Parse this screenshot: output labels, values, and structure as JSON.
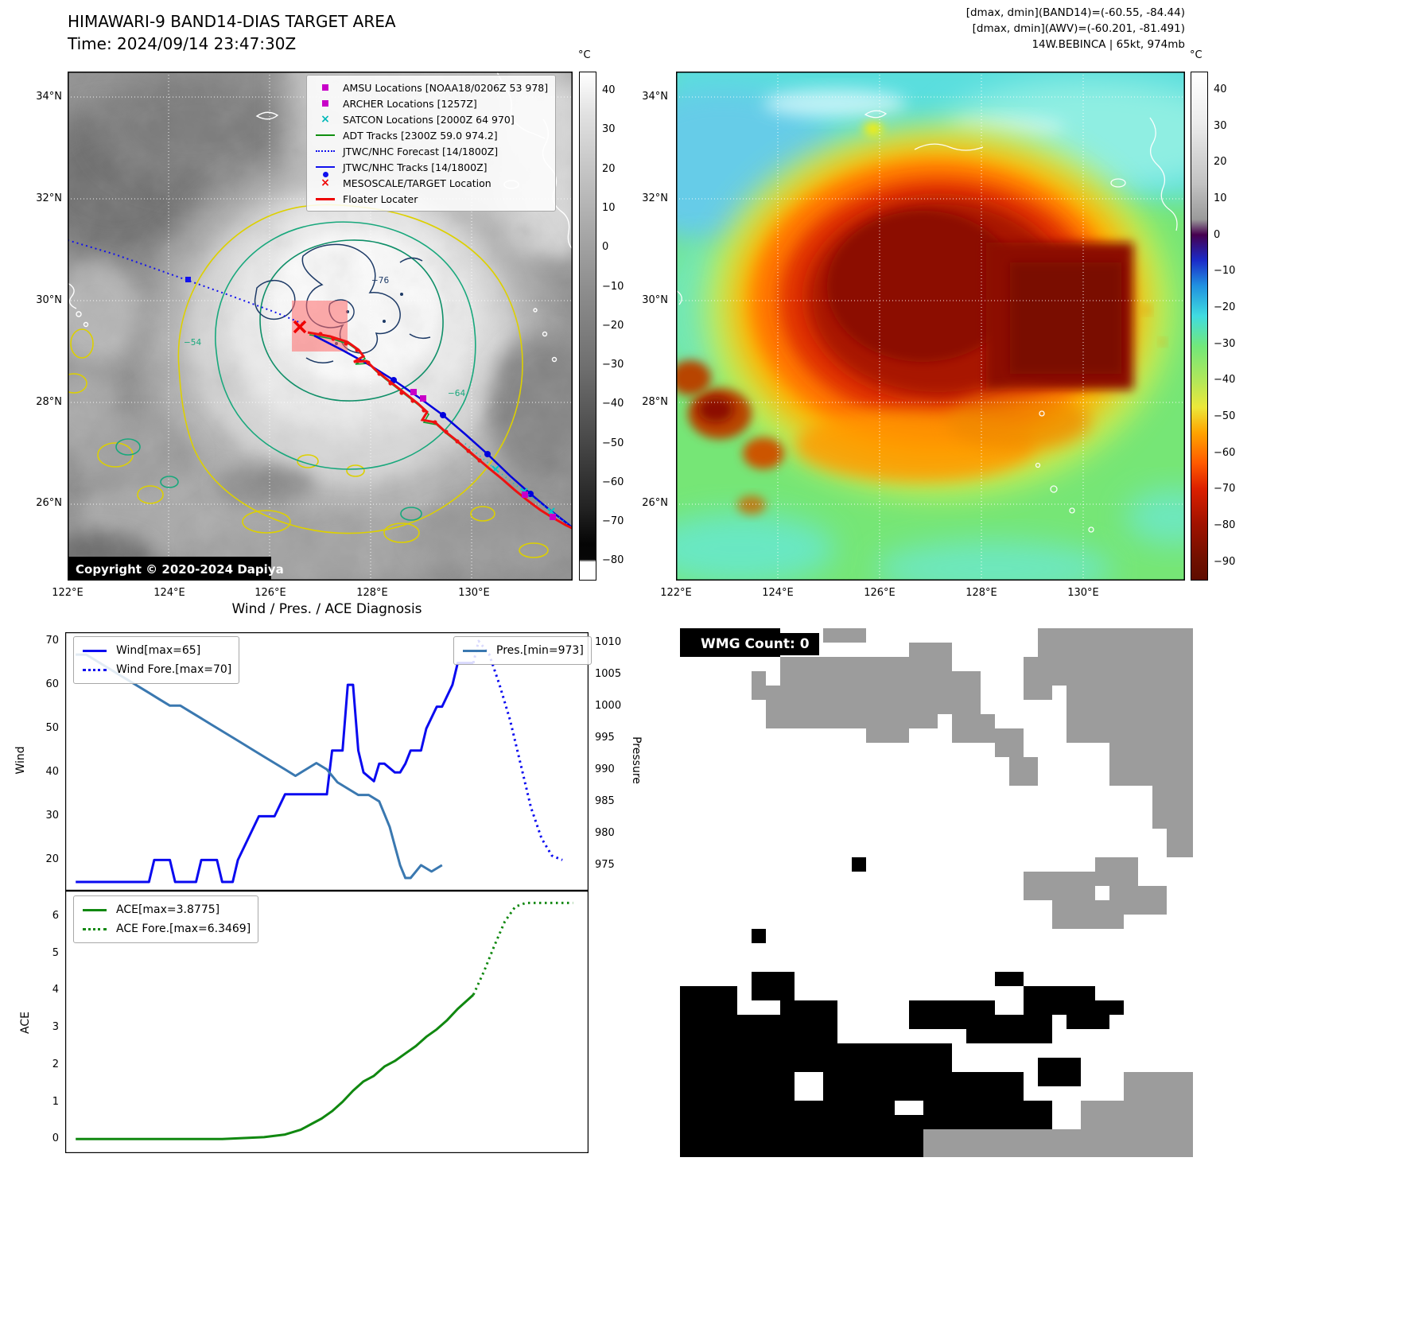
{
  "left_map": {
    "title": "HIMAWARI-9 BAND14-DIAS TARGET AREA",
    "subtitle": "Time: 2024/09/14 23:47:30Z",
    "copyright": "Copyright © 2020-2024 Dapiya",
    "colorbar_unit": "°C",
    "colorbar_ticks": [
      "40",
      "30",
      "20",
      "10",
      "0",
      "−10",
      "−20",
      "−30",
      "−40",
      "−50",
      "−60",
      "−70",
      "−80"
    ],
    "lat_ticks": [
      "34°N",
      "32°N",
      "30°N",
      "28°N",
      "26°N"
    ],
    "lon_ticks": [
      "122°E",
      "124°E",
      "126°E",
      "128°E",
      "130°E"
    ],
    "contour_labels": [
      "−54",
      "−64",
      "−76"
    ],
    "legend": [
      "AMSU Locations [NOAA18/0206Z 53 978]",
      "ARCHER Locations [1257Z]",
      "SATCON Locations [2000Z 64 970]",
      "ADT Tracks [2300Z 59.0 974.2]",
      "JTWC/NHC Forecast [14/1800Z]",
      "JTWC/NHC Tracks [14/1800Z]",
      "MESOSCALE/TARGET Location",
      "Floater Locater"
    ]
  },
  "right_map": {
    "info_line1": "[dmax, dmin](BAND14)=(-60.55, -84.44)",
    "info_line2": "[dmax, dmin](AWV)=(-60.201, -81.491)",
    "info_line3": "14W.BEBINCA | 65kt, 974mb",
    "colorbar_unit": "°C",
    "colorbar_ticks": [
      "40",
      "30",
      "20",
      "10",
      "0",
      "−10",
      "−20",
      "−30",
      "−40",
      "−50",
      "−60",
      "−70",
      "−80",
      "−90"
    ],
    "lat_ticks": [
      "34°N",
      "32°N",
      "30°N",
      "28°N",
      "26°N"
    ],
    "lon_ticks": [
      "122°E",
      "124°E",
      "126°E",
      "128°E",
      "130°E"
    ]
  },
  "wmg": {
    "label": "WMG Count: 0"
  },
  "chart_data": [
    {
      "type": "line",
      "title": "Wind / Pres. / ACE Diagnosis",
      "xlim": [
        0,
        100
      ],
      "ylabel_left": "Wind",
      "ylabel_right": "Pressure",
      "ylim_left": [
        13,
        72
      ],
      "ylim_right": [
        971,
        1011.5
      ],
      "yticks_left": [
        20,
        30,
        40,
        50,
        60,
        70
      ],
      "yticks_right": [
        975,
        980,
        985,
        990,
        995,
        1000,
        1005,
        1010
      ],
      "legend_position": "top-left and top-right",
      "grid": false,
      "series": [
        {
          "name": "Wind[max=65]",
          "axis": "left",
          "style": "solid",
          "color": "#0a0af0",
          "width": 3,
          "x": [
            2,
            16,
            17,
            20,
            21,
            25,
            26,
            29,
            30,
            32,
            33,
            35,
            37,
            40,
            42,
            50,
            51,
            53,
            54,
            55,
            56,
            57,
            59,
            60,
            61,
            63,
            64,
            65,
            66,
            68,
            69,
            71,
            72,
            74,
            75,
            78
          ],
          "y": [
            15,
            15,
            20,
            20,
            15,
            15,
            20,
            20,
            15,
            15,
            20,
            25,
            30,
            30,
            35,
            35,
            45,
            45,
            60,
            60,
            45,
            40,
            38,
            42,
            42,
            40,
            40,
            42,
            45,
            45,
            50,
            55,
            55,
            60,
            65,
            65
          ]
        },
        {
          "name": "Wind Fore.[max=70]",
          "axis": "left",
          "style": "dotted",
          "color": "#0a0af0",
          "width": 3,
          "x": [
            78,
            79,
            81,
            83,
            85,
            87,
            89,
            91,
            93,
            95
          ],
          "y": [
            65,
            70,
            67,
            60,
            52,
            42,
            32,
            25,
            21,
            20
          ]
        },
        {
          "name": "Pres.[min=973]",
          "axis": "right",
          "style": "solid",
          "color": "#3a78b0",
          "width": 3,
          "x": [
            2,
            4,
            6,
            8,
            10,
            12,
            14,
            16,
            18,
            20,
            22,
            24,
            26,
            28,
            30,
            32,
            34,
            36,
            38,
            40,
            42,
            44,
            46,
            48,
            50,
            52,
            54,
            56,
            58,
            60,
            61,
            62,
            63,
            64,
            65,
            66,
            67,
            68,
            70,
            72
          ],
          "y": [
            1008,
            1008,
            1007,
            1006,
            1005,
            1004,
            1003,
            1002,
            1001,
            1000,
            1000,
            999,
            998,
            997,
            996,
            995,
            994,
            993,
            992,
            991,
            990,
            989,
            990,
            991,
            990,
            988,
            987,
            986,
            986,
            985,
            983,
            981,
            978,
            975,
            973,
            973,
            974,
            975,
            974,
            975
          ]
        }
      ]
    },
    {
      "type": "line",
      "title": "ACE",
      "xlim": [
        0,
        100
      ],
      "ylabel_left": "ACE",
      "ylim_left": [
        -0.38,
        6.68
      ],
      "yticks_left": [
        0,
        1,
        2,
        3,
        4,
        5,
        6
      ],
      "legend_position": "top-left",
      "grid": false,
      "series": [
        {
          "name": "ACE[max=3.8775]",
          "axis": "left",
          "style": "solid",
          "color": "#108810",
          "width": 3,
          "x": [
            2,
            30,
            38,
            42,
            45,
            47,
            49,
            51,
            53,
            55,
            57,
            59,
            61,
            63,
            65,
            67,
            69,
            71,
            73,
            75,
            78
          ],
          "y": [
            0,
            0,
            0.05,
            0.12,
            0.25,
            0.4,
            0.55,
            0.75,
            1.0,
            1.3,
            1.55,
            1.7,
            1.95,
            2.1,
            2.3,
            2.5,
            2.75,
            2.95,
            3.2,
            3.5,
            3.88
          ]
        },
        {
          "name": "ACE Fore.[max=6.3469]",
          "axis": "left",
          "style": "dotted",
          "color": "#108810",
          "width": 3,
          "x": [
            78,
            80,
            82,
            84,
            86,
            88,
            90,
            97
          ],
          "y": [
            3.88,
            4.5,
            5.2,
            5.85,
            6.25,
            6.35,
            6.35,
            6.35
          ]
        }
      ]
    }
  ]
}
